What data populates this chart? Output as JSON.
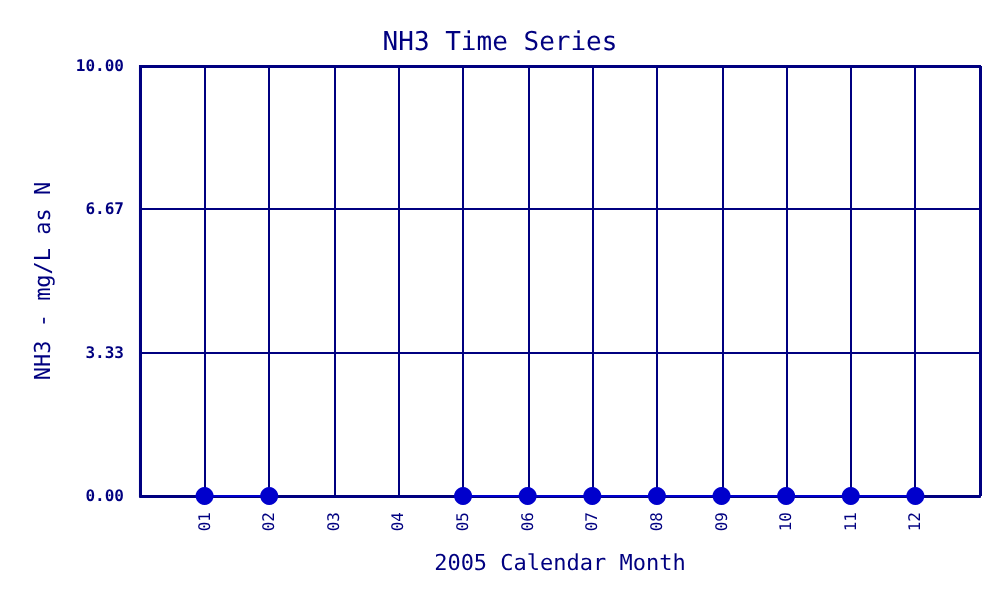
{
  "chart_data": {
    "type": "line",
    "title": "NH3 Time Series",
    "xlabel": "2005 Calendar Month",
    "ylabel": "NH3 - mg/L as N",
    "categories": [
      null,
      "01",
      "02",
      "03",
      "04",
      "05",
      "06",
      "07",
      "08",
      "09",
      "10",
      "11",
      "12",
      null
    ],
    "series": [
      {
        "color": "#0000cc",
        "values": [
          null,
          0,
          0,
          null,
          null,
          0,
          0,
          0,
          0,
          0,
          0,
          0,
          0,
          null
        ]
      }
    ],
    "ylim": [
      0,
      10
    ],
    "yticks": [
      {
        "value": 0,
        "label": "0.00"
      },
      {
        "value": 3.33,
        "label": "3.33"
      },
      {
        "value": 6.67,
        "label": "6.67"
      },
      {
        "value": 10,
        "label": "10.00"
      }
    ],
    "grid": true,
    "marker": "circle"
  }
}
